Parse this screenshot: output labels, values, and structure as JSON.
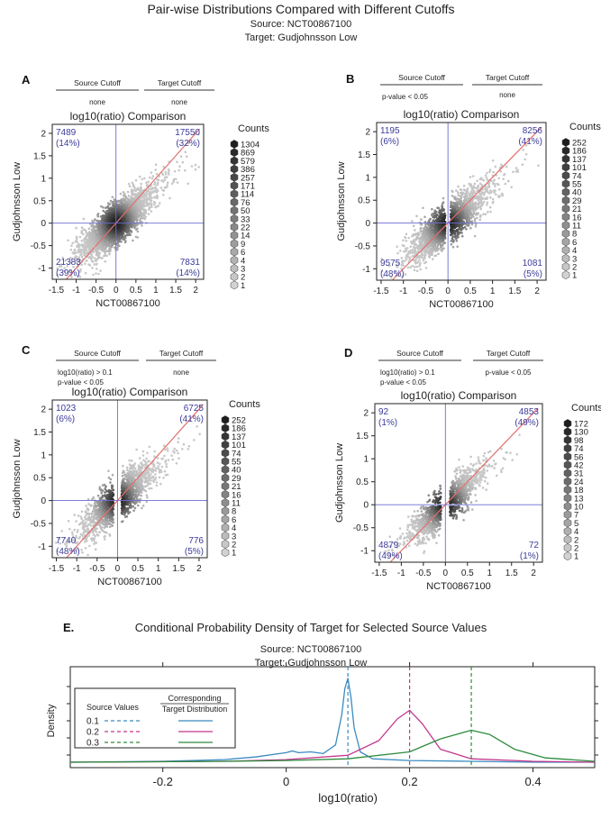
{
  "figure": {
    "title": "Pair-wise Distributions Compared with Different Cutoffs",
    "source_line": "Source: NCT00867100",
    "target_line": "Target: Gudjohnsson Low"
  },
  "chart_data": [
    {
      "panel": "A",
      "type": "scatter",
      "title": "log10(ratio) Comparison",
      "xlabel": "NCT00867100",
      "ylabel": "Gudjohnsson Low",
      "xlim": [
        -1.6,
        2.2
      ],
      "ylim": [
        -1.25,
        2.2
      ],
      "xticks": [
        -1.5,
        -1,
        -0.5,
        0,
        0.5,
        1,
        1.5,
        2
      ],
      "yticks": [
        -1,
        -0.5,
        0,
        0.5,
        1,
        1.5,
        2
      ],
      "source_cutoff_label": "Source Cutoff",
      "target_cutoff_label": "Target Cutoff",
      "source_cutoff": [
        "none"
      ],
      "target_cutoff": [
        "none"
      ],
      "quadrants": {
        "top_left": {
          "count": "7489",
          "pct": "(14%)"
        },
        "top_right": {
          "count": "17550",
          "pct": "(32%)"
        },
        "bottom_left": {
          "count": "21383",
          "pct": "(39%)"
        },
        "bottom_right": {
          "count": "7831",
          "pct": "(14%)"
        }
      },
      "legend_title": "Counts",
      "legend_values": [
        "1304",
        "869",
        "579",
        "386",
        "257",
        "171",
        "114",
        "76",
        "50",
        "33",
        "22",
        "14",
        "9",
        "6",
        "4",
        "3",
        "2",
        "1"
      ],
      "scatter": {
        "spread": 0.42,
        "corr": 0.72,
        "n": 2600,
        "gap": 0,
        "sig_gap": 0
      }
    },
    {
      "panel": "B",
      "type": "scatter",
      "title": "log10(ratio) Comparison",
      "xlabel": "NCT00867100",
      "ylabel": "Gudjohnsson Low",
      "xlim": [
        -1.6,
        2.2
      ],
      "ylim": [
        -1.25,
        2.2
      ],
      "xticks": [
        -1.5,
        -1,
        -0.5,
        0,
        0.5,
        1,
        1.5,
        2
      ],
      "yticks": [
        -1,
        -0.5,
        0,
        0.5,
        1,
        1.5,
        2
      ],
      "source_cutoff_label": "Source Cutoff",
      "target_cutoff_label": "Target Cutoff",
      "source_cutoff": [
        "p-value < 0.05"
      ],
      "target_cutoff": [
        "none"
      ],
      "quadrants": {
        "top_left": {
          "count": "1195",
          "pct": "(6%)"
        },
        "top_right": {
          "count": "8256",
          "pct": "(41%)"
        },
        "bottom_left": {
          "count": "9575",
          "pct": "(48%)"
        },
        "bottom_right": {
          "count": "1081",
          "pct": "(5%)"
        }
      },
      "legend_title": "Counts",
      "legend_values": [
        "252",
        "186",
        "137",
        "101",
        "74",
        "55",
        "40",
        "29",
        "21",
        "16",
        "11",
        "8",
        "6",
        "4",
        "3",
        "2",
        "1"
      ],
      "scatter": {
        "spread": 0.42,
        "corr": 0.75,
        "n": 1900,
        "gap": 0.06,
        "sig_gap": 0
      }
    },
    {
      "panel": "C",
      "type": "scatter",
      "title": "log10(ratio) Comparison",
      "xlabel": "NCT00867100",
      "ylabel": "Gudjohnsson Low",
      "xlim": [
        -1.6,
        2.2
      ],
      "ylim": [
        -1.25,
        2.2
      ],
      "xticks": [
        -1.5,
        -1,
        -0.5,
        0,
        0.5,
        1,
        1.5,
        2
      ],
      "yticks": [
        -1,
        -0.5,
        0,
        0.5,
        1,
        1.5,
        2
      ],
      "source_cutoff_label": "Source Cutoff",
      "target_cutoff_label": "Target Cutoff",
      "source_cutoff": [
        "log10(ratio) > 0.1",
        "p-value < 0.05"
      ],
      "target_cutoff": [
        "none"
      ],
      "quadrants": {
        "top_left": {
          "count": "1023",
          "pct": "(6%)"
        },
        "top_right": {
          "count": "6725",
          "pct": "(41%)"
        },
        "bottom_left": {
          "count": "7740",
          "pct": "(48%)"
        },
        "bottom_right": {
          "count": "776",
          "pct": "(5%)"
        }
      },
      "legend_title": "Counts",
      "legend_values": [
        "252",
        "186",
        "137",
        "101",
        "74",
        "55",
        "40",
        "29",
        "21",
        "16",
        "11",
        "8",
        "6",
        "4",
        "3",
        "2",
        "1"
      ],
      "scatter": {
        "spread": 0.42,
        "corr": 0.75,
        "n": 1800,
        "gap": 0.1,
        "sig_gap": 0
      }
    },
    {
      "panel": "D",
      "type": "scatter",
      "title": "log10(ratio) Comparison",
      "xlabel": "NCT00867100",
      "ylabel": "Gudjohnsson Low",
      "xlim": [
        -1.6,
        2.2
      ],
      "ylim": [
        -1.25,
        2.2
      ],
      "xticks": [
        -1.5,
        -1,
        -0.5,
        0,
        0.5,
        1,
        1.5,
        2
      ],
      "yticks": [
        -1,
        -0.5,
        0,
        0.5,
        1,
        1.5,
        2
      ],
      "source_cutoff_label": "Source Cutoff",
      "target_cutoff_label": "Target Cutoff",
      "source_cutoff": [
        "log10(ratio) > 0.1",
        "p-value < 0.05"
      ],
      "target_cutoff": [
        "p-value < 0.05"
      ],
      "quadrants": {
        "top_left": {
          "count": "92",
          "pct": "(1%)"
        },
        "top_right": {
          "count": "4853",
          "pct": "(49%)"
        },
        "bottom_left": {
          "count": "4879",
          "pct": "(49%)"
        },
        "bottom_right": {
          "count": "72",
          "pct": "(1%)"
        }
      },
      "legend_title": "Counts",
      "legend_values": [
        "172",
        "130",
        "98",
        "74",
        "56",
        "42",
        "31",
        "24",
        "18",
        "13",
        "10",
        "7",
        "5",
        "4",
        "2",
        "2",
        "1"
      ],
      "scatter": {
        "spread": 0.4,
        "corr": 0.82,
        "n": 1500,
        "gap": 0.1,
        "sig_gap": 0.06
      }
    },
    {
      "panel": "E",
      "type": "line",
      "title": "Conditional Probability Density of Target for Selected Source Values",
      "subtitle_source": "Source: NCT00867100",
      "subtitle_target": "Target: Gudjohnsson Low",
      "xlabel": "log10(ratio)",
      "ylabel": "Density",
      "xlim": [
        -0.35,
        0.5
      ],
      "xticks": [
        -0.2,
        0,
        0.2,
        0.4
      ],
      "legend_source_header": "Source Values",
      "legend_target_header": "Corresponding Target Distribution",
      "series": [
        {
          "name": "0.1",
          "source_value": 0.1,
          "color": "#3a8bc0",
          "peak_height": 1.0,
          "x": [
            -0.35,
            -0.2,
            -0.1,
            -0.05,
            0.0,
            0.01,
            0.02,
            0.04,
            0.06,
            0.08,
            0.09,
            0.095,
            0.1,
            0.105,
            0.11,
            0.12,
            0.14,
            0.2,
            0.3,
            0.4,
            0.5
          ],
          "y": [
            0.0,
            0.01,
            0.03,
            0.06,
            0.11,
            0.13,
            0.11,
            0.12,
            0.1,
            0.2,
            0.55,
            0.85,
            0.97,
            0.75,
            0.4,
            0.12,
            0.04,
            0.02,
            0.01,
            0.0,
            0.0
          ]
        },
        {
          "name": "0.2",
          "source_value": 0.2,
          "color": "#c2378e",
          "peak_height": 0.6,
          "x": [
            -0.35,
            -0.1,
            0.0,
            0.1,
            0.15,
            0.18,
            0.2,
            0.22,
            0.25,
            0.3,
            0.4,
            0.5
          ],
          "y": [
            0.0,
            0.01,
            0.03,
            0.08,
            0.25,
            0.5,
            0.6,
            0.45,
            0.15,
            0.04,
            0.01,
            0.0
          ]
        },
        {
          "name": "0.3",
          "source_value": 0.3,
          "color": "#2e8b3e",
          "peak_height": 0.37,
          "x": [
            -0.35,
            -0.1,
            0.0,
            0.1,
            0.2,
            0.25,
            0.3,
            0.33,
            0.37,
            0.42,
            0.5
          ],
          "y": [
            0.0,
            0.01,
            0.02,
            0.04,
            0.12,
            0.27,
            0.37,
            0.32,
            0.15,
            0.05,
            0.01
          ]
        }
      ]
    }
  ]
}
